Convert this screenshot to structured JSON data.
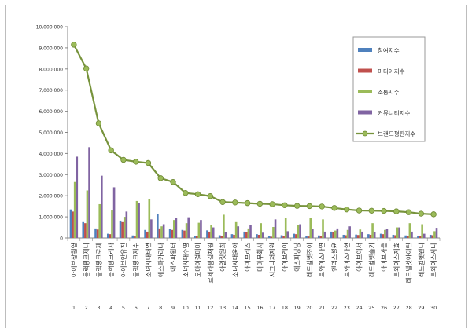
{
  "chart_data": {
    "type": "bar",
    "ylim": [
      0,
      10000000
    ],
    "y_ticks": [
      "0",
      "1,000,000",
      "2,000,000",
      "3,000,000",
      "4,000,000",
      "5,000,000",
      "6,000,000",
      "7,000,000",
      "8,000,000",
      "9,000,000",
      "10,000,000"
    ],
    "grid": false,
    "legend_position": "right",
    "ranks": [
      "1",
      "2",
      "3",
      "4",
      "5",
      "6",
      "7",
      "8",
      "9",
      "10",
      "11",
      "12",
      "13",
      "14",
      "15",
      "16",
      "17",
      "18",
      "19",
      "20",
      "21",
      "22",
      "23",
      "24",
      "25",
      "26",
      "27",
      "28",
      "29",
      "30"
    ],
    "categories": [
      "아이브장원영",
      "블랙핑크제니",
      "블랙핑크로제",
      "블랙핑크리사",
      "아이브안유진",
      "블랙핑크지수",
      "소녀시대태연",
      "에스파카리나",
      "에스파윈터",
      "소녀시대수영",
      "오마이걸미미",
      "르세라핌김채원",
      "아일릿원희",
      "소녀시대윤아",
      "아이브리즈",
      "마마무화사",
      "시그니처지원",
      "아이브레이",
      "에스파닝닝",
      "레드벨벳조이",
      "트와이스나연",
      "엔믹스설윤",
      "트와이스다현",
      "아이브이서",
      "레드벨벳슬기",
      "아이브가을",
      "트와이스지효",
      "레드벨벳아이린",
      "레드벨벳웬디",
      "트와이스사나"
    ],
    "series": [
      {
        "name": "참여지수",
        "type": "bar",
        "color": "#4f81bd",
        "values": [
          1350000,
          750000,
          450000,
          200000,
          820000,
          120000,
          380000,
          1120000,
          420000,
          380000,
          110000,
          360000,
          130000,
          180000,
          300000,
          180000,
          80000,
          130000,
          200000,
          80000,
          120000,
          300000,
          150000,
          160000,
          180000,
          200000,
          150000,
          120000,
          100000,
          150000
        ]
      },
      {
        "name": "미디어지수",
        "type": "bar",
        "color": "#c0504d",
        "values": [
          1250000,
          700000,
          400000,
          180000,
          750000,
          100000,
          300000,
          450000,
          380000,
          350000,
          100000,
          300000,
          100000,
          150000,
          280000,
          150000,
          60000,
          100000,
          180000,
          70000,
          100000,
          280000,
          130000,
          140000,
          150000,
          180000,
          130000,
          100000,
          90000,
          130000
        ]
      },
      {
        "name": "소통지수",
        "type": "bar",
        "color": "#9bbb59",
        "values": [
          2650000,
          2250000,
          1600000,
          1300000,
          1000000,
          1750000,
          1850000,
          550000,
          850000,
          700000,
          720000,
          620000,
          1100000,
          750000,
          450000,
          700000,
          520000,
          950000,
          600000,
          950000,
          880000,
          350000,
          380000,
          400000,
          700000,
          380000,
          500000,
          700000,
          650000,
          320000
        ]
      },
      {
        "name": "커뮤니티지수",
        "type": "bar",
        "color": "#8064a2",
        "values": [
          3850000,
          4300000,
          2950000,
          2400000,
          1250000,
          1650000,
          880000,
          650000,
          950000,
          980000,
          850000,
          500000,
          280000,
          550000,
          600000,
          250000,
          880000,
          320000,
          650000,
          420000,
          300000,
          450000,
          550000,
          300000,
          280000,
          420000,
          500000,
          300000,
          200000,
          480000
        ]
      },
      {
        "name": "브랜드평판지수",
        "type": "line",
        "color": "#77933c",
        "values": [
          9150000,
          8020000,
          5430000,
          4150000,
          3700000,
          3610000,
          3550000,
          2830000,
          2650000,
          2130000,
          2070000,
          1980000,
          1700000,
          1680000,
          1650000,
          1620000,
          1600000,
          1550000,
          1520000,
          1510000,
          1490000,
          1420000,
          1350000,
          1300000,
          1290000,
          1280000,
          1260000,
          1220000,
          1150000,
          1120000
        ]
      }
    ]
  }
}
